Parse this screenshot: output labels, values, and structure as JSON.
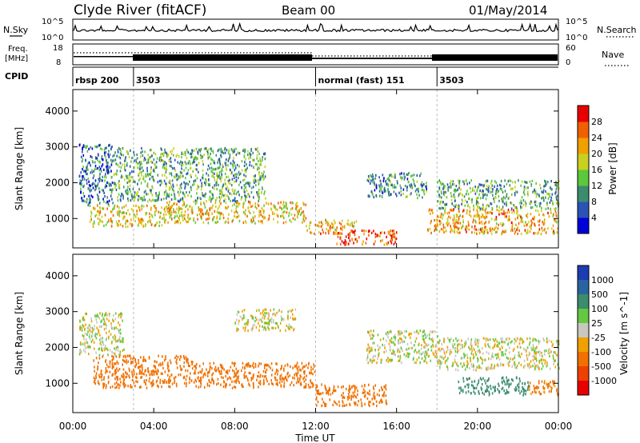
{
  "header": {
    "station": "Clyde River (fitACF)",
    "beam": "Beam 00",
    "date": "01/May/2014"
  },
  "panel_labels": {
    "nsky": "N.Sky",
    "freq_line1": "Freq.",
    "freq_line2": "[MHz]",
    "cpid": "CPID",
    "nsearch": "N.Search",
    "nave": "Nave"
  },
  "top_axes": {
    "nsky_ticks": [
      "10^5",
      "10^0"
    ],
    "nsearch_ticks": [
      "10^5",
      "10^0"
    ],
    "freq_ticks": [
      "18",
      "8"
    ],
    "nave_ticks": [
      "60",
      "0"
    ]
  },
  "cpid_segments": [
    {
      "label": "rbsp 200",
      "start_h": 0
    },
    {
      "label": "3503",
      "start_h": 3
    },
    {
      "label": "normal (fast) 151",
      "start_h": 12
    },
    {
      "label": "3503",
      "start_h": 18
    }
  ],
  "x_axis": {
    "label": "Time UT",
    "ticks": [
      "00:00",
      "04:00",
      "08:00",
      "12:00",
      "16:00",
      "20:00",
      "00:00"
    ],
    "min_h": 0,
    "max_h": 24
  },
  "power_panel": {
    "ylabel": "Slant Range [km]",
    "yticks": [
      "1000",
      "2000",
      "3000",
      "4000"
    ],
    "colorbar_label": "Power [dB]",
    "colorbar_ticks": [
      "4",
      "8",
      "12",
      "16",
      "20",
      "24",
      "28"
    ],
    "colors": [
      "#0000d8",
      "#2a54b4",
      "#3c8c6e",
      "#5cc83c",
      "#c8d020",
      "#f0a000",
      "#f06000",
      "#e80000"
    ]
  },
  "velocity_panel": {
    "ylabel": "Slant Range [km]",
    "yticks": [
      "1000",
      "2000",
      "3000",
      "4000"
    ],
    "colorbar_label": "Velocity [m s^-1]",
    "colorbar_ticks": [
      "1000",
      "500",
      "100",
      "25",
      "-25",
      "-100",
      "-500",
      "-1000"
    ],
    "colors": [
      "#1c3cb4",
      "#2a64a0",
      "#3c8c6e",
      "#64c840",
      "#c8c8c0",
      "#f0a000",
      "#f07000",
      "#f04000",
      "#e80000"
    ]
  },
  "chart_data": [
    {
      "type": "heatmap",
      "title": "Clyde River (fitACF) Beam 00 01/May/2014",
      "xlabel": "Time UT",
      "ylabel": "Slant Range [km]",
      "xlim": [
        0,
        24
      ],
      "ylim": [
        180,
        4600
      ],
      "colorbar": "Power [dB]",
      "scatter_regions": [
        {
          "t_start": 0.3,
          "t_end": 2.0,
          "r_low": 1400,
          "r_high": 3100,
          "power": 8
        },
        {
          "t_start": 0.8,
          "t_end": 4.5,
          "r_low": 800,
          "r_high": 1400,
          "power": 20
        },
        {
          "t_start": 2.0,
          "t_end": 9.5,
          "r_low": 1500,
          "r_high": 3000,
          "power": 12
        },
        {
          "t_start": 4.5,
          "t_end": 11.5,
          "r_low": 900,
          "r_high": 1500,
          "power": 20
        },
        {
          "t_start": 11.5,
          "t_end": 14.0,
          "r_low": 600,
          "r_high": 1000,
          "power": 22
        },
        {
          "t_start": 13.0,
          "t_end": 16.0,
          "r_low": 300,
          "r_high": 700,
          "power": 28
        },
        {
          "t_start": 14.5,
          "t_end": 17.5,
          "r_low": 1600,
          "r_high": 2300,
          "power": 10
        },
        {
          "t_start": 17.5,
          "t_end": 24.0,
          "r_low": 600,
          "r_high": 1300,
          "power": 22
        },
        {
          "t_start": 18.0,
          "t_end": 24.0,
          "r_low": 1300,
          "r_high": 2100,
          "power": 12
        }
      ]
    },
    {
      "type": "heatmap",
      "title": "",
      "xlabel": "Time UT",
      "ylabel": "Slant Range [km]",
      "xlim": [
        0,
        24
      ],
      "ylim": [
        180,
        4600
      ],
      "colorbar": "Velocity [m s^-1]",
      "scatter_regions": [
        {
          "t_start": 0.3,
          "t_end": 2.5,
          "r_low": 1800,
          "r_high": 3000,
          "velocity": 0
        },
        {
          "t_start": 1.0,
          "t_end": 6.0,
          "r_low": 900,
          "r_high": 1800,
          "velocity": -300
        },
        {
          "t_start": 6.0,
          "t_end": 12.0,
          "r_low": 900,
          "r_high": 1600,
          "velocity": -300
        },
        {
          "t_start": 8.0,
          "t_end": 11.0,
          "r_low": 2500,
          "r_high": 3100,
          "velocity": 0
        },
        {
          "t_start": 12.0,
          "t_end": 15.5,
          "r_low": 400,
          "r_high": 1000,
          "velocity": -200
        },
        {
          "t_start": 14.5,
          "t_end": 18.0,
          "r_low": 1600,
          "r_high": 2500,
          "velocity": 0
        },
        {
          "t_start": 18.0,
          "t_end": 24.0,
          "r_low": 1400,
          "r_high": 2300,
          "velocity": 0
        },
        {
          "t_start": 19.0,
          "t_end": 22.5,
          "r_low": 700,
          "r_high": 1200,
          "velocity": 200
        },
        {
          "t_start": 22.5,
          "t_end": 24.0,
          "r_low": 700,
          "r_high": 1100,
          "velocity": -150
        }
      ]
    }
  ]
}
